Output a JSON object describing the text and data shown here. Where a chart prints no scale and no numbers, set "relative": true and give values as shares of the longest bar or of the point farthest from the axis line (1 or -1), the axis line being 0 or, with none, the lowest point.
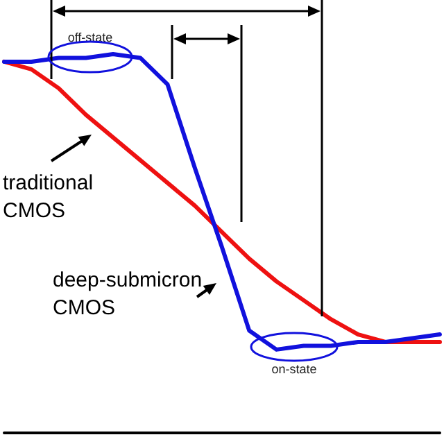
{
  "chart_data": {
    "type": "line",
    "relative": true,
    "categories": [
      null,
      null,
      null,
      null,
      null,
      null,
      null,
      null,
      null,
      null,
      null,
      null,
      null,
      null,
      null,
      null,
      null
    ],
    "series": [
      {
        "name": "traditional CMOS",
        "color": "#ee1111",
        "values": [
          0.98,
          0.96,
          0.91,
          0.84,
          0.78,
          0.72,
          0.66,
          0.6,
          0.53,
          0.46,
          0.4,
          0.35,
          0.3,
          0.26,
          0.24,
          0.24,
          0.24
        ]
      },
      {
        "name": "deep-submicron CMOS",
        "color": "#1111dd",
        "values": [
          0.98,
          0.98,
          0.99,
          0.99,
          1,
          0.99,
          0.92,
          0.7,
          0.49,
          0.27,
          0.22,
          0.23,
          0.23,
          0.24,
          0.24,
          0.25,
          0.26
        ]
      }
    ],
    "annotations": [
      "off-state",
      "on-state"
    ],
    "grid": false,
    "legend": false,
    "marker": "none",
    "line_style": "solid"
  }
}
